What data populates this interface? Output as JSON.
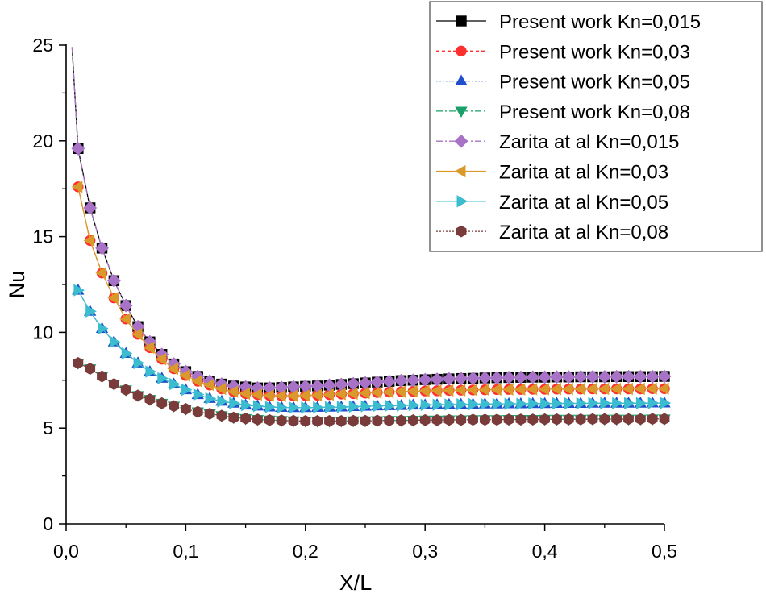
{
  "chart_data": {
    "type": "line",
    "title": "",
    "xlabel": "X/L",
    "ylabel": "Nu",
    "xlim": [
      0.0,
      0.5
    ],
    "ylim": [
      0,
      25
    ],
    "xticks": [
      0.0,
      0.1,
      0.2,
      0.3,
      0.4,
      0.5
    ],
    "xtick_labels": [
      "0,0",
      "0,1",
      "0,2",
      "0,3",
      "0,4",
      "0,5"
    ],
    "yticks": [
      0,
      5,
      10,
      15,
      20,
      25
    ],
    "ytick_labels": [
      "0",
      "5",
      "10",
      "15",
      "20",
      "25"
    ],
    "legend_position": "top-right",
    "x": [
      0.01,
      0.02,
      0.03,
      0.04,
      0.05,
      0.06,
      0.07,
      0.08,
      0.09,
      0.1,
      0.11,
      0.12,
      0.13,
      0.14,
      0.15,
      0.16,
      0.17,
      0.18,
      0.19,
      0.2,
      0.21,
      0.22,
      0.23,
      0.24,
      0.25,
      0.26,
      0.27,
      0.28,
      0.29,
      0.3,
      0.31,
      0.32,
      0.33,
      0.34,
      0.35,
      0.36,
      0.37,
      0.38,
      0.39,
      0.4,
      0.41,
      0.42,
      0.43,
      0.44,
      0.45,
      0.46,
      0.47,
      0.48,
      0.49,
      0.5
    ],
    "series": [
      {
        "name": "Present work Kn=0,015",
        "color": "#000000",
        "marker": "square",
        "dash": "solid",
        "x_start": 0.005,
        "y_start": 24.9,
        "values": [
          19.6,
          16.5,
          14.4,
          12.7,
          11.4,
          10.3,
          9.5,
          8.85,
          8.35,
          7.95,
          7.7,
          7.45,
          7.3,
          7.2,
          7.15,
          7.1,
          7.1,
          7.12,
          7.15,
          7.18,
          7.2,
          7.24,
          7.28,
          7.32,
          7.36,
          7.4,
          7.44,
          7.48,
          7.5,
          7.53,
          7.55,
          7.57,
          7.59,
          7.6,
          7.62,
          7.63,
          7.64,
          7.65,
          7.66,
          7.66,
          7.67,
          7.67,
          7.68,
          7.68,
          7.68,
          7.69,
          7.69,
          7.69,
          7.69,
          7.7
        ]
      },
      {
        "name": "Present work Kn=0,03",
        "color": "#ff3030",
        "marker": "circle",
        "dash": "4,3",
        "values": [
          17.6,
          14.8,
          13.1,
          11.8,
          10.7,
          9.9,
          9.2,
          8.6,
          8.1,
          7.75,
          7.45,
          7.25,
          7.05,
          6.9,
          6.8,
          6.75,
          6.7,
          6.68,
          6.68,
          6.7,
          6.72,
          6.75,
          6.78,
          6.8,
          6.83,
          6.86,
          6.88,
          6.9,
          6.92,
          6.94,
          6.95,
          6.97,
          6.98,
          6.99,
          7.0,
          7.01,
          7.02,
          7.02,
          7.03,
          7.03,
          7.04,
          7.04,
          7.04,
          7.05,
          7.05,
          7.05,
          7.05,
          7.05,
          7.06,
          7.06
        ]
      },
      {
        "name": "Present work Kn=0,05",
        "color": "#1f4fcc",
        "marker": "triangle-up",
        "dash": "2,2",
        "values": [
          12.2,
          11.1,
          10.2,
          9.5,
          8.9,
          8.4,
          7.95,
          7.6,
          7.3,
          7.0,
          6.75,
          6.55,
          6.4,
          6.3,
          6.2,
          6.15,
          6.1,
          6.08,
          6.07,
          6.07,
          6.08,
          6.09,
          6.1,
          6.12,
          6.14,
          6.16,
          6.17,
          6.18,
          6.2,
          6.21,
          6.22,
          6.23,
          6.24,
          6.25,
          6.26,
          6.26,
          6.27,
          6.27,
          6.28,
          6.28,
          6.29,
          6.29,
          6.29,
          6.3,
          6.3,
          6.3,
          6.3,
          6.3,
          6.31,
          6.31
        ]
      },
      {
        "name": "Present work Kn=0,08",
        "color": "#1aa06a",
        "marker": "triangle-down",
        "dash": "8,3,2,3",
        "values": [
          8.4,
          8.1,
          7.7,
          7.3,
          7.0,
          6.7,
          6.5,
          6.3,
          6.15,
          6.0,
          5.85,
          5.75,
          5.65,
          5.55,
          5.5,
          5.45,
          5.42,
          5.4,
          5.38,
          5.37,
          5.37,
          5.37,
          5.37,
          5.38,
          5.38,
          5.39,
          5.4,
          5.4,
          5.41,
          5.42,
          5.42,
          5.43,
          5.43,
          5.44,
          5.44,
          5.44,
          5.45,
          5.45,
          5.45,
          5.46,
          5.46,
          5.46,
          5.46,
          5.47,
          5.47,
          5.47,
          5.47,
          5.47,
          5.48,
          5.48
        ]
      },
      {
        "name": "Zarita at al Kn=0,015",
        "color": "#a873c6",
        "marker": "diamond",
        "dash": "8,3,2,3",
        "x_start": 0.005,
        "y_start": 24.9,
        "values": [
          19.6,
          16.5,
          14.4,
          12.7,
          11.4,
          10.3,
          9.5,
          8.85,
          8.35,
          7.95,
          7.7,
          7.45,
          7.3,
          7.2,
          7.15,
          7.1,
          7.1,
          7.12,
          7.15,
          7.18,
          7.2,
          7.24,
          7.28,
          7.32,
          7.36,
          7.4,
          7.44,
          7.48,
          7.5,
          7.53,
          7.55,
          7.57,
          7.59,
          7.6,
          7.62,
          7.63,
          7.64,
          7.65,
          7.66,
          7.66,
          7.67,
          7.67,
          7.68,
          7.68,
          7.68,
          7.69,
          7.69,
          7.69,
          7.69,
          7.7
        ]
      },
      {
        "name": "Zarita at al Kn=0,03",
        "color": "#d99a2b",
        "marker": "triangle-left",
        "dash": "solid",
        "values": [
          17.6,
          14.8,
          13.1,
          11.8,
          10.7,
          9.9,
          9.2,
          8.6,
          8.1,
          7.75,
          7.45,
          7.25,
          7.05,
          6.9,
          6.8,
          6.75,
          6.7,
          6.68,
          6.68,
          6.7,
          6.72,
          6.75,
          6.78,
          6.8,
          6.83,
          6.86,
          6.88,
          6.9,
          6.92,
          6.94,
          6.95,
          6.97,
          6.98,
          6.99,
          7.0,
          7.01,
          7.02,
          7.02,
          7.03,
          7.03,
          7.04,
          7.04,
          7.04,
          7.05,
          7.05,
          7.05,
          7.05,
          7.05,
          7.06,
          7.06
        ]
      },
      {
        "name": "Zarita at al Kn=0,05",
        "color": "#3bbccf",
        "marker": "triangle-right",
        "dash": "solid",
        "values": [
          12.2,
          11.1,
          10.2,
          9.5,
          8.9,
          8.4,
          7.95,
          7.6,
          7.3,
          7.0,
          6.75,
          6.55,
          6.4,
          6.3,
          6.2,
          6.15,
          6.1,
          6.08,
          6.07,
          6.07,
          6.08,
          6.09,
          6.1,
          6.12,
          6.14,
          6.16,
          6.17,
          6.18,
          6.2,
          6.21,
          6.22,
          6.23,
          6.24,
          6.25,
          6.26,
          6.26,
          6.27,
          6.27,
          6.28,
          6.28,
          6.29,
          6.29,
          6.29,
          6.3,
          6.3,
          6.3,
          6.3,
          6.3,
          6.31,
          6.31
        ]
      },
      {
        "name": "Zarita at al Kn=0,08",
        "color": "#7a3b3b",
        "marker": "hexagon",
        "dash": "2,2",
        "values": [
          8.4,
          8.1,
          7.7,
          7.3,
          7.0,
          6.7,
          6.5,
          6.3,
          6.15,
          6.0,
          5.85,
          5.75,
          5.65,
          5.55,
          5.5,
          5.45,
          5.42,
          5.4,
          5.38,
          5.37,
          5.37,
          5.37,
          5.37,
          5.38,
          5.38,
          5.39,
          5.4,
          5.4,
          5.41,
          5.42,
          5.42,
          5.43,
          5.43,
          5.44,
          5.44,
          5.44,
          5.45,
          5.45,
          5.45,
          5.46,
          5.46,
          5.46,
          5.46,
          5.47,
          5.47,
          5.47,
          5.47,
          5.47,
          5.48,
          5.48
        ]
      }
    ]
  }
}
